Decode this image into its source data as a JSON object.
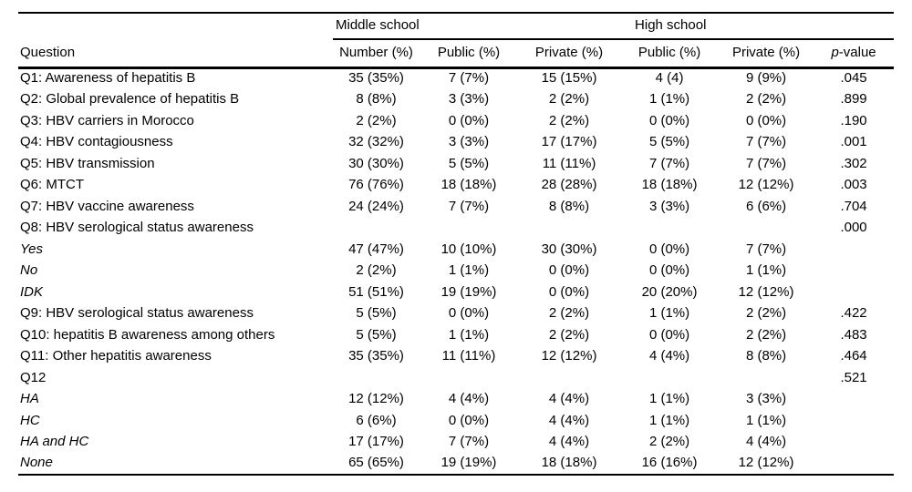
{
  "table": {
    "spanners": {
      "middle_school": "Middle school",
      "high_school": "High school"
    },
    "headers": {
      "question": "Question",
      "ms_number": "Number (%)",
      "ms_public": "Public (%)",
      "ms_private": "Private (%)",
      "hs_public": "Public (%)",
      "hs_private": "Private (%)",
      "pvalue_italic": "p",
      "pvalue_rest": "-value"
    },
    "rows": [
      {
        "question": "Q1: Awareness of hepatitis B",
        "italic": false,
        "cells": [
          "35 (35%)",
          "7 (7%)",
          "15 (15%)",
          "4 (4)",
          "9 (9%)",
          ".045"
        ]
      },
      {
        "question": "Q2: Global prevalence of hepatitis B",
        "italic": false,
        "cells": [
          "8 (8%)",
          "3 (3%)",
          "2 (2%)",
          "1 (1%)",
          "2 (2%)",
          ".899"
        ]
      },
      {
        "question": "Q3: HBV carriers in Morocco",
        "italic": false,
        "cells": [
          "2 (2%)",
          "0 (0%)",
          "2 (2%)",
          "0 (0%)",
          "0 (0%)",
          ".190"
        ]
      },
      {
        "question": "Q4: HBV contagiousness",
        "italic": false,
        "cells": [
          "32 (32%)",
          "3 (3%)",
          "17 (17%)",
          "5 (5%)",
          "7 (7%)",
          ".001"
        ]
      },
      {
        "question": "Q5: HBV transmission",
        "italic": false,
        "cells": [
          "30 (30%)",
          "5 (5%)",
          "11 (11%)",
          "7 (7%)",
          "7 (7%)",
          ".302"
        ]
      },
      {
        "question": "Q6: MTCT",
        "italic": false,
        "cells": [
          "76 (76%)",
          "18 (18%)",
          "28 (28%)",
          "18 (18%)",
          "12 (12%)",
          ".003"
        ]
      },
      {
        "question": "Q7: HBV vaccine awareness",
        "italic": false,
        "cells": [
          "24 (24%)",
          "7 (7%)",
          "8 (8%)",
          "3 (3%)",
          "6 (6%)",
          ".704"
        ]
      },
      {
        "question": "Q8: HBV serological status awareness",
        "italic": false,
        "cells": [
          "",
          "",
          "",
          "",
          "",
          ".000"
        ]
      },
      {
        "question": "Yes",
        "italic": true,
        "cells": [
          "47 (47%)",
          "10 (10%)",
          "30 (30%)",
          "0 (0%)",
          "7 (7%)",
          ""
        ]
      },
      {
        "question": "No",
        "italic": true,
        "cells": [
          "2 (2%)",
          "1 (1%)",
          "0 (0%)",
          "0 (0%)",
          "1 (1%)",
          ""
        ]
      },
      {
        "question": "IDK",
        "italic": true,
        "cells": [
          "51 (51%)",
          "19 (19%)",
          "0 (0%)",
          "20 (20%)",
          "12 (12%)",
          ""
        ]
      },
      {
        "question": "Q9: HBV serological status awareness",
        "italic": false,
        "cells": [
          "5 (5%)",
          "0 (0%)",
          "2 (2%)",
          "1 (1%)",
          "2 (2%)",
          ".422"
        ]
      },
      {
        "question": "Q10: hepatitis B awareness among others",
        "italic": false,
        "cells": [
          "5 (5%)",
          "1 (1%)",
          "2 (2%)",
          "0 (0%)",
          "2 (2%)",
          ".483"
        ]
      },
      {
        "question": "Q11: Other hepatitis awareness",
        "italic": false,
        "cells": [
          "35 (35%)",
          "11 (11%)",
          "12 (12%)",
          "4 (4%)",
          "8 (8%)",
          ".464"
        ]
      },
      {
        "question": "Q12",
        "italic": false,
        "cells": [
          "",
          "",
          "",
          "",
          "",
          ".521"
        ]
      },
      {
        "question": "HA",
        "italic": true,
        "cells": [
          "12 (12%)",
          "4 (4%)",
          "4 (4%)",
          "1 (1%)",
          "3 (3%)",
          ""
        ]
      },
      {
        "question": "HC",
        "italic": true,
        "cells": [
          "6 (6%)",
          "0 (0%)",
          "4 (4%)",
          "1 (1%)",
          "1 (1%)",
          ""
        ]
      },
      {
        "question": "HA and HC",
        "italic": true,
        "cells": [
          "17 (17%)",
          "7 (7%)",
          "4 (4%)",
          "2 (2%)",
          "4 (4%)",
          ""
        ]
      },
      {
        "question": "None",
        "italic": true,
        "cells": [
          "65 (65%)",
          "19 (19%)",
          "18 (18%)",
          "16 (16%)",
          "12 (12%)",
          ""
        ]
      }
    ]
  }
}
